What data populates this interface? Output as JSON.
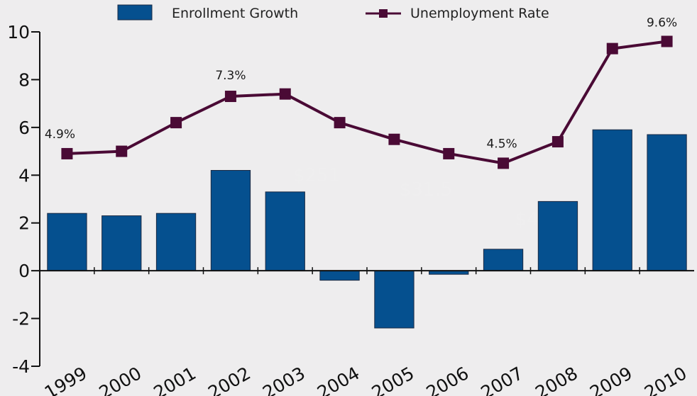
{
  "chart_data": {
    "type": "bar",
    "categories": [
      "1999",
      "2000",
      "2001",
      "2002",
      "2003",
      "2004",
      "2005",
      "2006",
      "2007",
      "2008",
      "2009",
      "2010"
    ],
    "series": [
      {
        "name": "Enrollment Growth",
        "type": "bar",
        "color": "#05508f",
        "values": [
          2.4,
          2.3,
          2.4,
          4.2,
          3.3,
          -0.4,
          -2.4,
          -0.15,
          0.9,
          2.9,
          5.9,
          5.7
        ]
      },
      {
        "name": "Unemployment Rate",
        "type": "line",
        "color": "#4a0a35",
        "values": [
          4.9,
          5.0,
          6.2,
          7.3,
          7.4,
          6.2,
          5.5,
          4.9,
          4.5,
          5.4,
          9.3,
          9.6
        ]
      }
    ],
    "data_labels": [
      {
        "series": 1,
        "index": 0,
        "text": "4.9%"
      },
      {
        "series": 1,
        "index": 3,
        "text": "7.3%"
      },
      {
        "series": 1,
        "index": 8,
        "text": "4.5%"
      },
      {
        "series": 1,
        "index": 11,
        "text": "9.6%"
      }
    ],
    "yticks": [
      -4,
      -2,
      0,
      2,
      4,
      6,
      8,
      10
    ],
    "ylim": [
      -4,
      10
    ],
    "title": "",
    "xlabel": "",
    "ylabel": "",
    "grid": false,
    "legend_position": "top"
  },
  "background_text": [
    "$251",
    "$31.5",
    "$4"
  ]
}
